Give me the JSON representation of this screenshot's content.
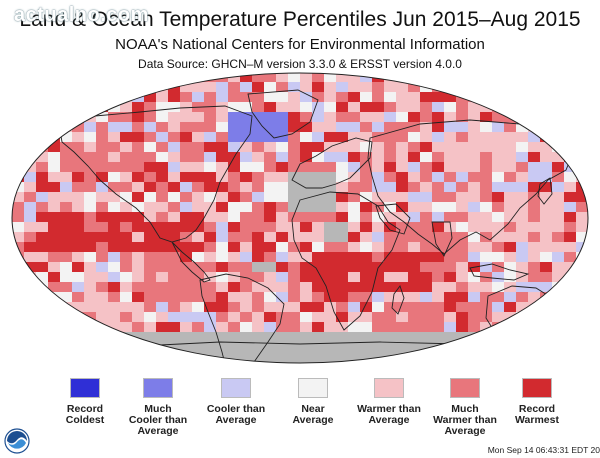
{
  "watermark": "actualno.com",
  "header": {
    "title": "Land & Ocean Temperature Percentiles Jun 2015–Aug 2015",
    "subtitle": "NOAA's National Centers for Environmental Information",
    "source": "Data Source: GHCN–M version 3.3.0 & ERSST version 4.0.0"
  },
  "colors": {
    "record_coldest": "#2f2fd6",
    "much_cooler": "#7d7de8",
    "cooler": "#c9c9f3",
    "near_average": "#f3f3f3",
    "warmer": "#f5c2c6",
    "much_warmer": "#e8767c",
    "record_warmest": "#d22a2f",
    "no_data": "#b7b7b7",
    "coastline": "#222222"
  },
  "legend": [
    {
      "key": "record_coldest",
      "lines": [
        "Record",
        "Coldest"
      ]
    },
    {
      "key": "much_cooler",
      "lines": [
        "Much",
        "Cooler than",
        "Average"
      ]
    },
    {
      "key": "cooler",
      "lines": [
        "Cooler than",
        "Average"
      ]
    },
    {
      "key": "near_average",
      "lines": [
        "Near",
        "Average"
      ]
    },
    {
      "key": "warmer",
      "lines": [
        "Warmer than",
        "Average"
      ]
    },
    {
      "key": "much_warmer",
      "lines": [
        "Much",
        "Warmer than",
        "Average"
      ]
    },
    {
      "key": "record_warmest",
      "lines": [
        "Record",
        "Warmest"
      ]
    }
  ],
  "footer": {
    "logo": "noaa-logo",
    "timestamp": "Mon Sep 14 06:43:31 EDT 20"
  }
}
